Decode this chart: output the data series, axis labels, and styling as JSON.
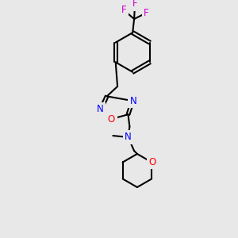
{
  "background_color": "#e8e8e8",
  "bond_color": "#000000",
  "atom_colors": {
    "N": "#0000ff",
    "O": "#ff0000",
    "F": "#cc00cc",
    "C": "#000000"
  },
  "figsize": [
    3.0,
    3.0
  ],
  "dpi": 100
}
